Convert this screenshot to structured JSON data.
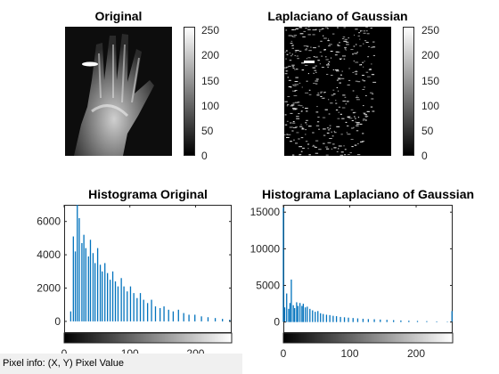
{
  "figure": {
    "colorbar_ticks": [
      "250",
      "200",
      "150",
      "100",
      "50",
      "0"
    ],
    "status_text": "Pixel info: (X, Y)  Pixel Value"
  },
  "panels": {
    "original": {
      "title": "Original"
    },
    "log": {
      "title": "Laplaciano of Gaussian"
    }
  },
  "chart_data": [
    {
      "type": "bar",
      "title": "Histograma Original",
      "xlabel": "",
      "ylabel": "",
      "xlim": [
        0,
        255
      ],
      "ylim": [
        -700,
        7000
      ],
      "xticks": [
        "0",
        "100",
        "200"
      ],
      "yticks": [
        "0",
        "2000",
        "4000",
        "6000"
      ],
      "colorbar": "gray",
      "series": [
        {
          "name": "counts",
          "x": [
            10,
            14,
            17,
            20,
            23,
            27,
            30,
            33,
            37,
            40,
            44,
            47,
            51,
            55,
            58,
            62,
            66,
            70,
            74,
            78,
            82,
            87,
            91,
            96,
            101,
            106,
            111,
            116,
            121,
            127,
            133,
            139,
            146,
            152,
            159,
            166,
            174,
            182,
            190,
            199,
            209,
            219,
            230,
            241,
            252
          ],
          "values": [
            600,
            5100,
            4200,
            7000,
            6200,
            4700,
            5200,
            4400,
            3900,
            4900,
            4100,
            3500,
            4400,
            3400,
            3000,
            3500,
            2900,
            2500,
            3000,
            2400,
            2100,
            2600,
            2100,
            1800,
            2100,
            1700,
            1400,
            1700,
            1300,
            1100,
            1300,
            900,
            800,
            900,
            700,
            600,
            700,
            500,
            400,
            400,
            300,
            250,
            200,
            150,
            100
          ]
        }
      ]
    },
    {
      "type": "bar",
      "title": "Histograma Laplaciano of Gaussian",
      "xlabel": "",
      "ylabel": "",
      "xlim": [
        0,
        255
      ],
      "ylim": [
        -1500,
        16000
      ],
      "xticks": [
        "0",
        "100",
        "200"
      ],
      "yticks": [
        "0",
        "5000",
        "10000",
        "15000"
      ],
      "colorbar": "gray",
      "series": [
        {
          "name": "counts",
          "x": [
            0,
            2,
            5,
            8,
            10,
            12,
            15,
            17,
            20,
            22,
            25,
            28,
            30,
            33,
            36,
            40,
            44,
            48,
            52,
            56,
            60,
            65,
            70,
            75,
            80,
            86,
            92,
            98,
            105,
            112,
            120,
            128,
            137,
            146,
            156,
            166,
            177,
            189,
            202,
            216,
            231,
            247,
            254
          ],
          "values": [
            15600,
            2000,
            3900,
            1800,
            2600,
            5800,
            2300,
            1900,
            2700,
            2200,
            2600,
            2200,
            2500,
            2000,
            2100,
            1800,
            1600,
            1400,
            1500,
            1200,
            1100,
            1000,
            950,
            850,
            800,
            700,
            650,
            600,
            550,
            500,
            450,
            400,
            380,
            340,
            300,
            260,
            220,
            180,
            150,
            120,
            90,
            60,
            1500
          ]
        }
      ]
    }
  ]
}
